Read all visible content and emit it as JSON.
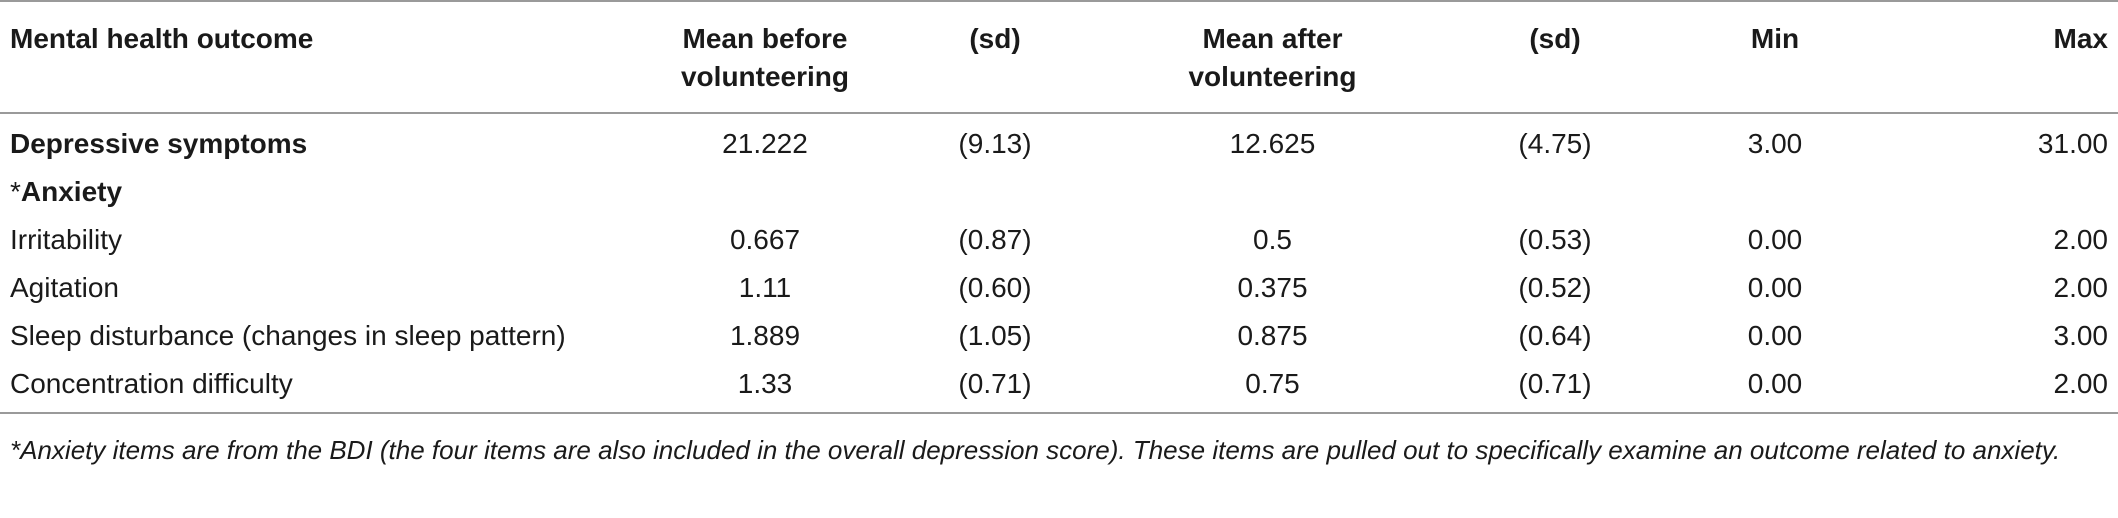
{
  "table": {
    "headers": {
      "outcome": "Mental health outcome",
      "mean_before_line1": "Mean before",
      "mean_before_line2": "volunteering",
      "sd_before": "(sd)",
      "mean_after_line1": "Mean after",
      "mean_after_line2": "volunteering",
      "sd_after": "(sd)",
      "min": "Min",
      "max": "Max"
    },
    "rows": [
      {
        "outcome": "Depressive symptoms",
        "mean_before": "21.222",
        "sd_before": "(9.13)",
        "mean_after": "12.625",
        "sd_after": "(4.75)",
        "min": "3.00",
        "max": "31.00"
      },
      {
        "marker": "*",
        "outcome": "Anxiety"
      },
      {
        "outcome": "Irritability",
        "mean_before": "0.667",
        "sd_before": "(0.87)",
        "mean_after": "0.5",
        "sd_after": "(0.53)",
        "min": "0.00",
        "max": "2.00"
      },
      {
        "outcome": "Agitation",
        "mean_before": "1.11",
        "sd_before": "(0.60)",
        "mean_after": "0.375",
        "sd_after": "(0.52)",
        "min": "0.00",
        "max": "2.00"
      },
      {
        "outcome": "Sleep disturbance (changes in sleep pattern)",
        "mean_before": "1.889",
        "sd_before": "(1.05)",
        "mean_after": "0.875",
        "sd_after": "(0.64)",
        "min": "0.00",
        "max": "3.00"
      },
      {
        "outcome": "Concentration difficulty",
        "mean_before": "1.33",
        "sd_before": "(0.71)",
        "mean_after": "0.75",
        "sd_after": "(0.71)",
        "min": "0.00",
        "max": "2.00"
      }
    ]
  },
  "footnote": "*Anxiety items are from the BDI (the four items are also included in the overall depression score). These items are pulled out to specifically examine an outcome related to anxiety."
}
